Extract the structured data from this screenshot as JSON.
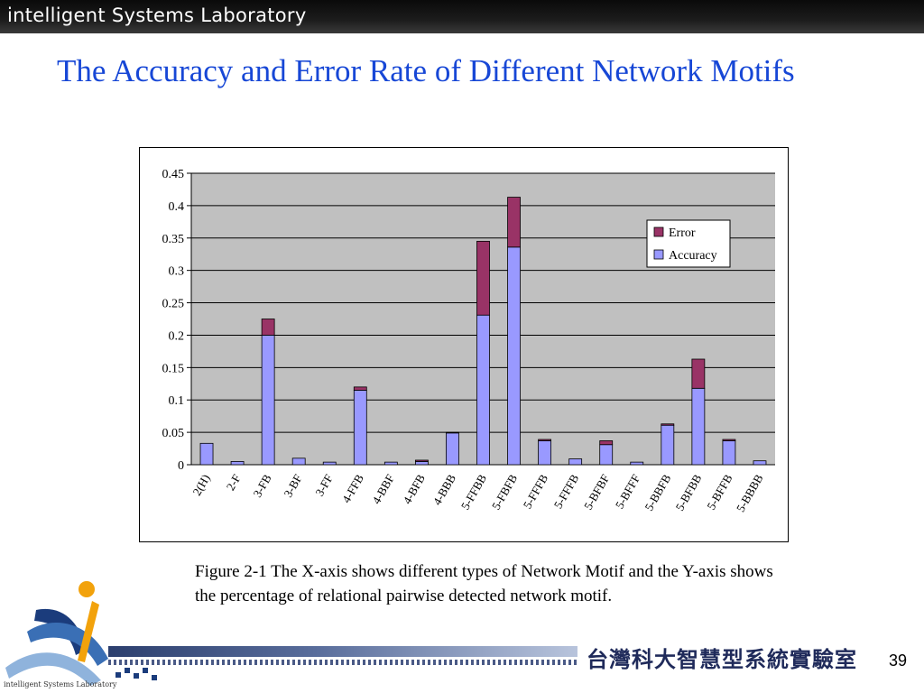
{
  "header": {
    "lab_name": "intelligent Systems Laboratory"
  },
  "slide": {
    "title": "The Accuracy and Error Rate of Different Network Motifs",
    "caption": "Figure 2-1 The X-axis shows different types of Network Motif and the Y-axis shows the percentage of relational pairwise detected network motif.",
    "page_number": "39"
  },
  "footer": {
    "chinese_label": "台灣科大智慧型系統實驗室",
    "logo_text": "intelligent Systems Laboratory"
  },
  "colors": {
    "title": "#1747d6",
    "accuracy": "#9999ff",
    "error": "#993366",
    "plot_background": "#c0c0c0"
  },
  "chart_data": {
    "type": "bar",
    "stacked": true,
    "categories": [
      "2(H)",
      "2-F",
      "3-FB",
      "3-BF",
      "3-FF",
      "4-FFB",
      "4-BBF",
      "4-BFB",
      "4-BBB",
      "5-FFBB",
      "5-FBFB",
      "5-FFFB",
      "5-FFFB",
      "5-BFBF",
      "5-BFFF",
      "5-BBFB",
      "5-BFBB",
      "5-BFFB",
      "5-BBBB"
    ],
    "series": [
      {
        "name": "Accuracy",
        "color": "#9999ff",
        "values": [
          0.033,
          0.005,
          0.2,
          0.01,
          0.004,
          0.115,
          0.004,
          0.005,
          0.049,
          0.231,
          0.336,
          0.037,
          0.009,
          0.031,
          0.004,
          0.061,
          0.118,
          0.037,
          0.006
        ]
      },
      {
        "name": "Error",
        "color": "#993366",
        "values": [
          0,
          0,
          0.025,
          0,
          0,
          0.005,
          0,
          0.002,
          0.001,
          0.114,
          0.077,
          0.002,
          0,
          0.006,
          0,
          0.002,
          0.045,
          0.002,
          0
        ]
      }
    ],
    "y_ticks": [
      "0",
      "0.05",
      "0.1",
      "0.15",
      "0.2",
      "0.25",
      "0.3",
      "0.35",
      "0.4",
      "0.45"
    ],
    "ylim": [
      0,
      0.45
    ],
    "grid": true,
    "legend_position": "top-right",
    "legend": [
      "Error",
      "Accuracy"
    ]
  }
}
